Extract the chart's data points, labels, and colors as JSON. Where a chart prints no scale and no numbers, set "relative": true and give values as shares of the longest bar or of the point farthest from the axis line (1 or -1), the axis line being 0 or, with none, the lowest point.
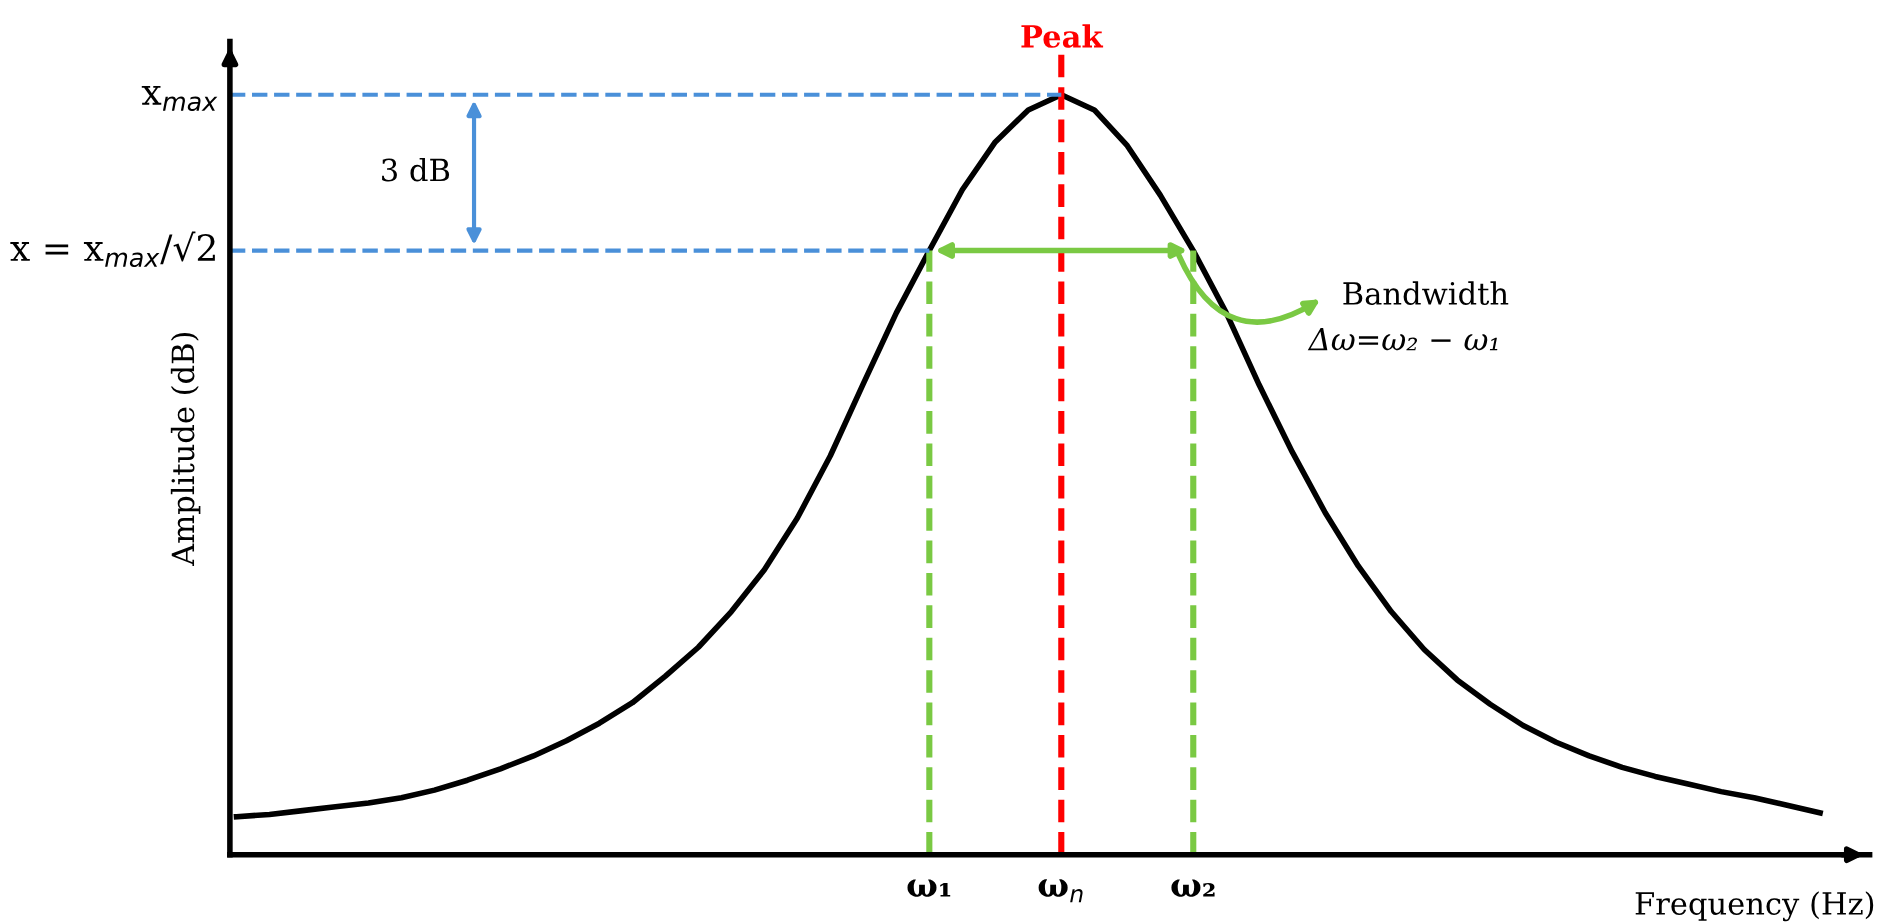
{
  "chart_data": {
    "type": "line",
    "relative": true,
    "xlabel": "Frequency (Hz)",
    "ylabel": "Amplitude (dB)",
    "categories": [
      null,
      null,
      null,
      null,
      null,
      null,
      null,
      null,
      null,
      null,
      null,
      null,
      null,
      null,
      null,
      null,
      null,
      null,
      null,
      null,
      null,
      "ω₁",
      null,
      null,
      null,
      "ω$_{n}$",
      null,
      null,
      null,
      "ω₂",
      null,
      null,
      null,
      null,
      null,
      null,
      null,
      null,
      null,
      null,
      null,
      null,
      null,
      null,
      null,
      null,
      null,
      null,
      null
    ],
    "series": [
      {
        "color": "#000000",
        "values": [
          0.05,
          0.053,
          0.058,
          0.063,
          0.068,
          0.075,
          0.085,
          0.098,
          0.113,
          0.13,
          0.15,
          0.173,
          0.2,
          0.235,
          0.273,
          0.32,
          0.375,
          0.443,
          0.525,
          0.62,
          0.713,
          0.795,
          0.875,
          0.938,
          0.98,
          1,
          0.98,
          0.933,
          0.868,
          0.795,
          0.713,
          0.618,
          0.53,
          0.45,
          0.38,
          0.32,
          0.27,
          0.23,
          0.198,
          0.17,
          0.148,
          0.13,
          0.115,
          0.103,
          0.093,
          0.083,
          0.075,
          0.065,
          0.055
        ]
      }
    ],
    "ref_lines": [
      {
        "axis": "x",
        "value": "ω₁",
        "color": "#7ac943",
        "line_style": "dashed"
      },
      {
        "axis": "x",
        "value": "ω$_{n}$",
        "label": "Peak",
        "color": "#ff0000",
        "line_style": "dashed"
      },
      {
        "axis": "x",
        "value": "ω₂",
        "color": "#7ac943",
        "line_style": "dashed"
      },
      {
        "axis": "y",
        "value": 1,
        "label": "x$_{max}$",
        "color": "#4a90d9",
        "line_style": "dashed"
      },
      {
        "axis": "y",
        "value": 0.795,
        "label": "x = x$_{max}$/√2",
        "color": "#4a90d9",
        "line_style": "dashed"
      }
    ],
    "annotations": [
      "3 dB",
      "Bandwidth",
      "Δω=ω₂ − ω₁"
    ],
    "grid": false,
    "legend": false,
    "line_style": "solid",
    "marker": "none"
  }
}
